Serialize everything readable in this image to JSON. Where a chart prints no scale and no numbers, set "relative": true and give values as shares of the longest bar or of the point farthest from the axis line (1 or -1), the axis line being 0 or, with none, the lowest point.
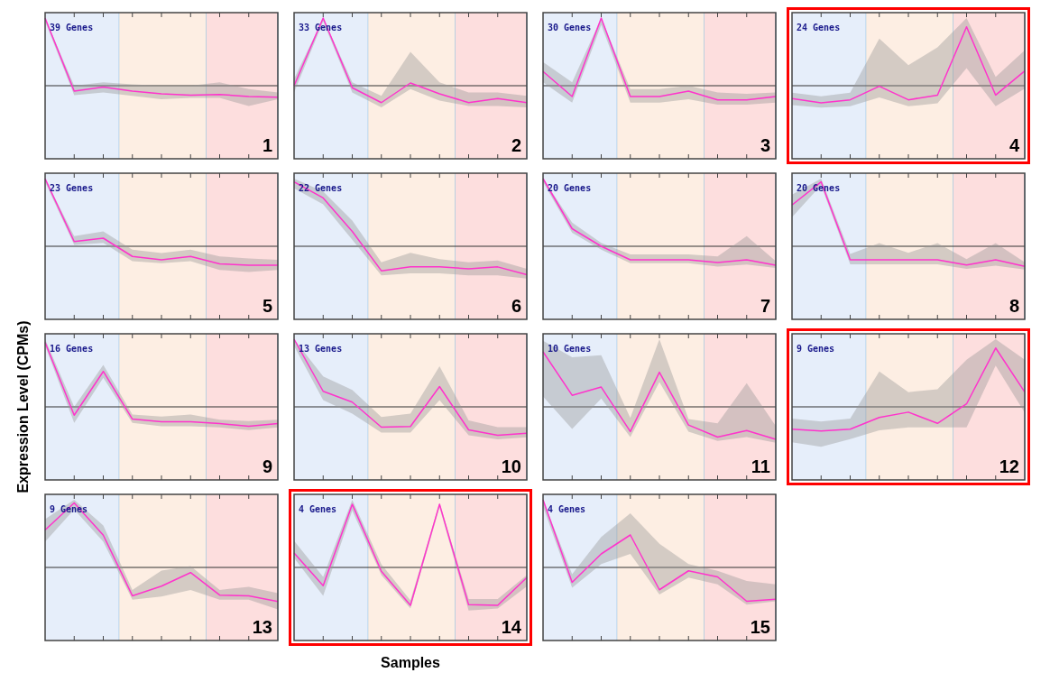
{
  "chart_data": [
    {
      "type": "line",
      "relative": true,
      "categories": [
        null,
        null,
        null,
        null,
        null,
        null,
        null,
        null,
        null
      ],
      "annotations": [
        "39 Genes",
        "1"
      ],
      "series": [
        {
          "color": "#ff33cc",
          "values": [
            1,
            -0.08,
            -0.02,
            -0.08,
            -0.12,
            -0.14,
            -0.13,
            -0.16,
            -0.17
          ],
          "upper": [
            1,
            0,
            0.05,
            0.02,
            0,
            0,
            0.05,
            -0.05,
            -0.1
          ],
          "lower": [
            0.95,
            -0.14,
            -0.1,
            -0.15,
            -0.2,
            -0.18,
            -0.18,
            -0.3,
            -0.2
          ]
        }
      ]
    },
    {
      "type": "line",
      "relative": true,
      "categories": [
        null,
        null,
        null,
        null,
        null,
        null,
        null,
        null,
        null
      ],
      "annotations": [
        "33 Genes",
        "2"
      ],
      "series": [
        {
          "color": "#ff33cc",
          "values": [
            0,
            1,
            -0.03,
            -0.25,
            0.04,
            -0.12,
            -0.25,
            -0.19,
            -0.25
          ],
          "upper": [
            0.1,
            1,
            0.05,
            -0.15,
            0.5,
            0.05,
            -0.1,
            -0.1,
            -0.15
          ],
          "lower": [
            -0.1,
            0.95,
            -0.1,
            -0.32,
            -0.05,
            -0.22,
            -0.3,
            -0.3,
            -0.32
          ]
        }
      ]
    },
    {
      "type": "line",
      "relative": true,
      "categories": [
        null,
        null,
        null,
        null,
        null,
        null,
        null,
        null,
        null
      ],
      "annotations": [
        "30 Genes",
        "3"
      ],
      "series": [
        {
          "color": "#ff33cc",
          "values": [
            0.21,
            -0.16,
            1,
            -0.16,
            -0.16,
            -0.08,
            -0.21,
            -0.21,
            -0.16
          ],
          "upper": [
            0.35,
            0.05,
            1,
            -0.05,
            -0.05,
            0,
            -0.1,
            -0.12,
            -0.1
          ],
          "lower": [
            0.05,
            -0.25,
            0.9,
            -0.25,
            -0.25,
            -0.2,
            -0.28,
            -0.28,
            -0.25
          ]
        }
      ]
    },
    {
      "type": "line",
      "relative": true,
      "categories": [
        null,
        null,
        null,
        null,
        null,
        null,
        null,
        null,
        null
      ],
      "annotations": [
        "24 Genes",
        "4"
      ],
      "series": [
        {
          "color": "#ff33cc",
          "values": [
            -0.22,
            -0.29,
            -0.24,
            -0.01,
            -0.24,
            -0.16,
            1,
            -0.16,
            0.25
          ],
          "upper": [
            -0.12,
            -0.18,
            -0.12,
            0.8,
            0.35,
            0.65,
            1.15,
            0.15,
            0.6
          ],
          "lower": [
            -0.33,
            -0.37,
            -0.35,
            -0.2,
            -0.35,
            -0.3,
            0.3,
            -0.35,
            -0.05
          ]
        }
      ]
    },
    {
      "type": "line",
      "relative": true,
      "categories": [
        null,
        null,
        null,
        null,
        null,
        null,
        null,
        null,
        null
      ],
      "annotations": [
        "23 Genes",
        "5"
      ],
      "series": [
        {
          "color": "#ff33cc",
          "values": [
            1,
            0.07,
            0.12,
            -0.15,
            -0.2,
            -0.15,
            -0.26,
            -0.28,
            -0.28
          ],
          "upper": [
            1,
            0.15,
            0.22,
            -0.05,
            -0.1,
            -0.05,
            -0.15,
            -0.18,
            -0.2
          ],
          "lower": [
            0.95,
            0.02,
            0.05,
            -0.22,
            -0.25,
            -0.22,
            -0.35,
            -0.38,
            -0.35
          ]
        }
      ]
    },
    {
      "type": "line",
      "relative": true,
      "categories": [
        null,
        null,
        null,
        null,
        null,
        null,
        null,
        null,
        null
      ],
      "annotations": [
        "22 Genes",
        "6"
      ],
      "series": [
        {
          "color": "#ff33cc",
          "values": [
            1,
            0.75,
            0.23,
            -0.38,
            -0.32,
            -0.32,
            -0.35,
            -0.32,
            -0.44
          ],
          "upper": [
            1.05,
            0.85,
            0.4,
            -0.25,
            -0.1,
            -0.2,
            -0.25,
            -0.22,
            -0.35
          ],
          "lower": [
            0.9,
            0.65,
            0.1,
            -0.45,
            -0.42,
            -0.42,
            -0.45,
            -0.45,
            -0.5
          ]
        }
      ]
    },
    {
      "type": "line",
      "relative": true,
      "categories": [
        null,
        null,
        null,
        null,
        null,
        null,
        null,
        null,
        null
      ],
      "annotations": [
        "20 Genes",
        "7"
      ],
      "series": [
        {
          "color": "#ff33cc",
          "values": [
            1,
            0.26,
            0,
            -0.2,
            -0.2,
            -0.2,
            -0.24,
            -0.2,
            -0.28
          ],
          "upper": [
            1,
            0.35,
            0.05,
            -0.12,
            -0.12,
            -0.12,
            -0.15,
            0.15,
            -0.22
          ],
          "lower": [
            0.95,
            0.2,
            -0.05,
            -0.25,
            -0.25,
            -0.25,
            -0.3,
            -0.27,
            -0.32
          ]
        }
      ]
    },
    {
      "type": "line",
      "relative": true,
      "categories": [
        null,
        null,
        null,
        null,
        null,
        null,
        null,
        null,
        null
      ],
      "annotations": [
        "20 Genes",
        "8"
      ],
      "series": [
        {
          "color": "#ff33cc",
          "values": [
            0.64,
            1,
            -0.21,
            -0.21,
            -0.21,
            -0.21,
            -0.29,
            -0.21,
            -0.31
          ],
          "upper": [
            0.8,
            1.05,
            -0.12,
            0.05,
            -0.1,
            0.05,
            -0.2,
            0.05,
            -0.25
          ],
          "lower": [
            0.45,
            0.95,
            -0.28,
            -0.28,
            -0.28,
            -0.28,
            -0.35,
            -0.3,
            -0.36
          ]
        }
      ]
    },
    {
      "type": "line",
      "relative": true,
      "categories": [
        null,
        null,
        null,
        null,
        null,
        null,
        null,
        null,
        null
      ],
      "ylabel": "Expression Level (CPMs)",
      "annotations": [
        "16 Genes",
        "9"
      ],
      "series": [
        {
          "color": "#ff33cc",
          "values": [
            1,
            -0.13,
            0.55,
            -0.19,
            -0.23,
            -0.23,
            -0.26,
            -0.3,
            -0.26
          ],
          "upper": [
            1.05,
            0,
            0.65,
            -0.12,
            -0.15,
            -0.12,
            -0.2,
            -0.22,
            -0.2
          ],
          "lower": [
            0.95,
            -0.25,
            0.45,
            -0.25,
            -0.3,
            -0.3,
            -0.32,
            -0.36,
            -0.32
          ]
        }
      ]
    },
    {
      "type": "line",
      "relative": true,
      "categories": [
        null,
        null,
        null,
        null,
        null,
        null,
        null,
        null,
        null
      ],
      "annotations": [
        "13 Genes",
        "10"
      ],
      "series": [
        {
          "color": "#ff33cc",
          "values": [
            1,
            0.23,
            0.07,
            -0.3,
            -0.29,
            0.3,
            -0.34,
            -0.42,
            -0.39
          ],
          "upper": [
            1,
            0.45,
            0.25,
            -0.15,
            -0.1,
            0.6,
            -0.2,
            -0.3,
            -0.3
          ],
          "lower": [
            0.9,
            0.1,
            -0.1,
            -0.38,
            -0.38,
            0.1,
            -0.42,
            -0.48,
            -0.45
          ]
        }
      ]
    },
    {
      "type": "line",
      "relative": true,
      "categories": [
        null,
        null,
        null,
        null,
        null,
        null,
        null,
        null,
        null
      ],
      "annotations": [
        "10 Genes",
        "11"
      ],
      "series": [
        {
          "color": "#ff33cc",
          "values": [
            1,
            0.21,
            0.36,
            -0.45,
            0.63,
            -0.33,
            -0.55,
            -0.43,
            -0.59
          ],
          "upper": [
            1.2,
            0.9,
            0.94,
            -0.2,
            1.23,
            -0.22,
            -0.3,
            0.43,
            -0.35
          ],
          "lower": [
            0.19,
            -0.4,
            0.15,
            -0.55,
            0.45,
            -0.45,
            -0.62,
            -0.55,
            -0.65
          ]
        }
      ]
    },
    {
      "type": "line",
      "relative": true,
      "categories": [
        null,
        null,
        null,
        null,
        null,
        null,
        null,
        null,
        null
      ],
      "annotations": [
        "9 Genes",
        "12"
      ],
      "series": [
        {
          "color": "#ff33cc",
          "values": [
            -0.38,
            -0.41,
            -0.38,
            -0.18,
            -0.09,
            -0.28,
            0.05,
            1,
            0.25
          ],
          "upper": [
            -0.2,
            -0.25,
            -0.2,
            0.6,
            0.25,
            0.3,
            0.8,
            1.15,
            0.8
          ],
          "lower": [
            -0.6,
            -0.68,
            -0.55,
            -0.4,
            -0.35,
            -0.35,
            -0.35,
            0.7,
            -0.1
          ]
        }
      ]
    },
    {
      "type": "line",
      "relative": true,
      "categories": [
        null,
        null,
        null,
        null,
        null,
        null,
        null,
        null,
        null
      ],
      "annotations": [
        "9 Genes",
        "13"
      ],
      "series": [
        {
          "color": "#ff33cc",
          "values": [
            0.58,
            1,
            0.5,
            -0.44,
            -0.29,
            -0.08,
            -0.43,
            -0.44,
            -0.53
          ],
          "upper": [
            0.75,
            1.05,
            0.65,
            -0.35,
            -0.05,
            0.02,
            -0.35,
            -0.3,
            -0.4
          ],
          "lower": [
            0.4,
            0.9,
            0.4,
            -0.5,
            -0.45,
            -0.35,
            -0.5,
            -0.5,
            -0.65
          ]
        }
      ]
    },
    {
      "type": "line",
      "relative": true,
      "categories": [
        null,
        null,
        null,
        null,
        null,
        null,
        null,
        null,
        null
      ],
      "xlabel": "Samples",
      "annotations": [
        "4 Genes",
        "14"
      ],
      "series": [
        {
          "color": "#ff33cc",
          "values": [
            0.23,
            -0.29,
            1,
            -0.06,
            -0.6,
            1,
            -0.59,
            -0.6,
            -0.16
          ],
          "upper": [
            0.42,
            -0.15,
            1.07,
            0.05,
            -0.52,
            1.02,
            -0.5,
            -0.5,
            -0.12
          ],
          "lower": [
            0.15,
            -0.45,
            0.9,
            -0.12,
            -0.65,
            0.95,
            -0.68,
            -0.65,
            -0.3
          ]
        }
      ]
    },
    {
      "type": "line",
      "relative": true,
      "categories": [
        null,
        null,
        null,
        null,
        null,
        null,
        null,
        null,
        null
      ],
      "annotations": [
        "4 Genes",
        "15"
      ],
      "series": [
        {
          "color": "#ff33cc",
          "values": [
            1,
            -0.22,
            0.2,
            0.48,
            -0.33,
            -0.05,
            -0.14,
            -0.5,
            -0.47
          ],
          "upper": [
            1,
            -0.1,
            0.45,
            0.8,
            0.35,
            0.05,
            -0.05,
            -0.2,
            -0.25
          ],
          "lower": [
            0.9,
            -0.3,
            0.05,
            0.2,
            -0.4,
            -0.15,
            -0.25,
            -0.55,
            -0.5
          ]
        }
      ]
    }
  ]
}
